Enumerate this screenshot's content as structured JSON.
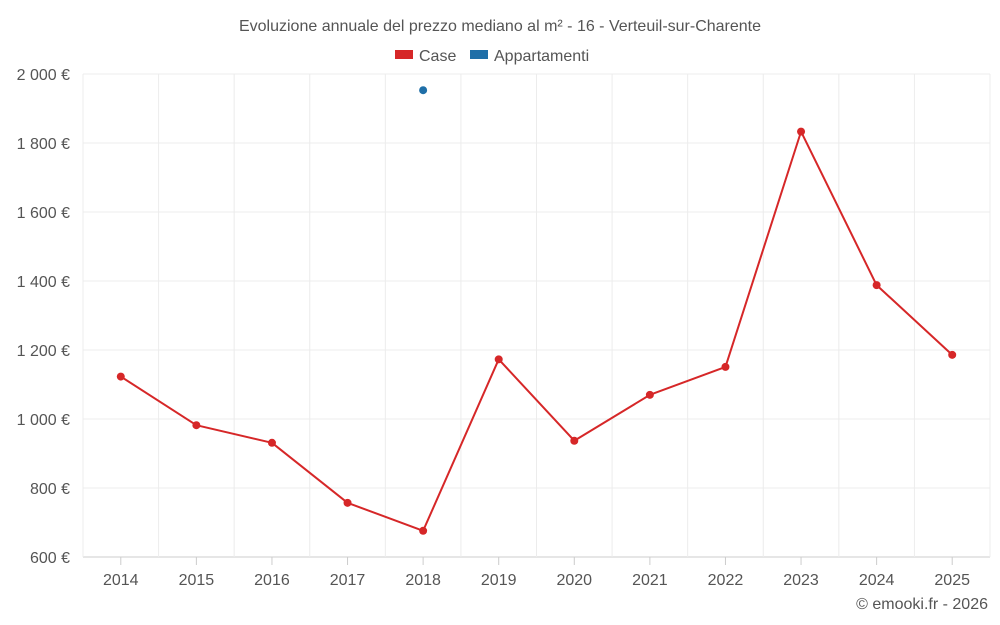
{
  "chart_data": {
    "type": "line",
    "title": "Evoluzione annuale del prezzo mediano al m² - 16 - Verteuil-sur-Charente",
    "categories": [
      "2014",
      "2015",
      "2016",
      "2017",
      "2018",
      "2019",
      "2020",
      "2021",
      "2022",
      "2023",
      "2024",
      "2025"
    ],
    "y_tick_labels": [
      "600 €",
      "800 €",
      "1 000 €",
      "1 200 €",
      "1 400 €",
      "1 600 €",
      "1 800 €",
      "2 000 €"
    ],
    "y_ticks": [
      600,
      800,
      1000,
      1200,
      1400,
      1600,
      1800,
      2000
    ],
    "ylim": [
      600,
      2000
    ],
    "grid": true,
    "legend_position": "top-center",
    "series": [
      {
        "name": "Case",
        "color": "#d62728",
        "values": [
          1123,
          982,
          931,
          757,
          676,
          1173,
          937,
          1070,
          1151,
          1833,
          1388,
          1186
        ]
      },
      {
        "name": "Appartamenti",
        "color": "#1f6fa8",
        "values": [
          null,
          null,
          null,
          null,
          1953,
          null,
          null,
          null,
          null,
          null,
          null,
          null
        ]
      }
    ],
    "credit": "© emooki.fr - 2026"
  }
}
